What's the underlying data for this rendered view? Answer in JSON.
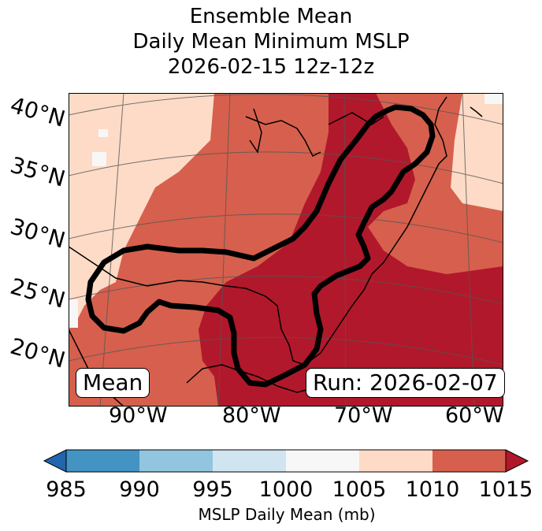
{
  "title": {
    "line1": "Ensemble Mean",
    "line2": "Daily Mean Minimum MSLP",
    "line3": "2026-02-15 12z-12z"
  },
  "map": {
    "lat_labels": [
      "40°N",
      "35°N",
      "30°N",
      "25°N",
      "20°N"
    ],
    "lon_labels": [
      "90°W",
      "80°W",
      "70°W",
      "60°W"
    ],
    "mean_badge": "Mean",
    "run_badge": "Run: 2026-02-07",
    "fill_colors": {
      "c1000_1005": "#f7f7f7",
      "c1005_1010": "#fddbc7",
      "c1010_1015": "#d6604d",
      "c1015_plus": "#b2182b"
    },
    "contour_color": "#000000"
  },
  "colorbar": {
    "label": "MSLP Daily Mean (mb)",
    "ticks": [
      "985",
      "990",
      "995",
      "1000",
      "1005",
      "1010",
      "1015"
    ],
    "colors": [
      "#2166ac",
      "#4393c3",
      "#92c5de",
      "#d1e5f0",
      "#f7f7f7",
      "#fddbc7",
      "#d6604d",
      "#b2182b"
    ]
  }
}
